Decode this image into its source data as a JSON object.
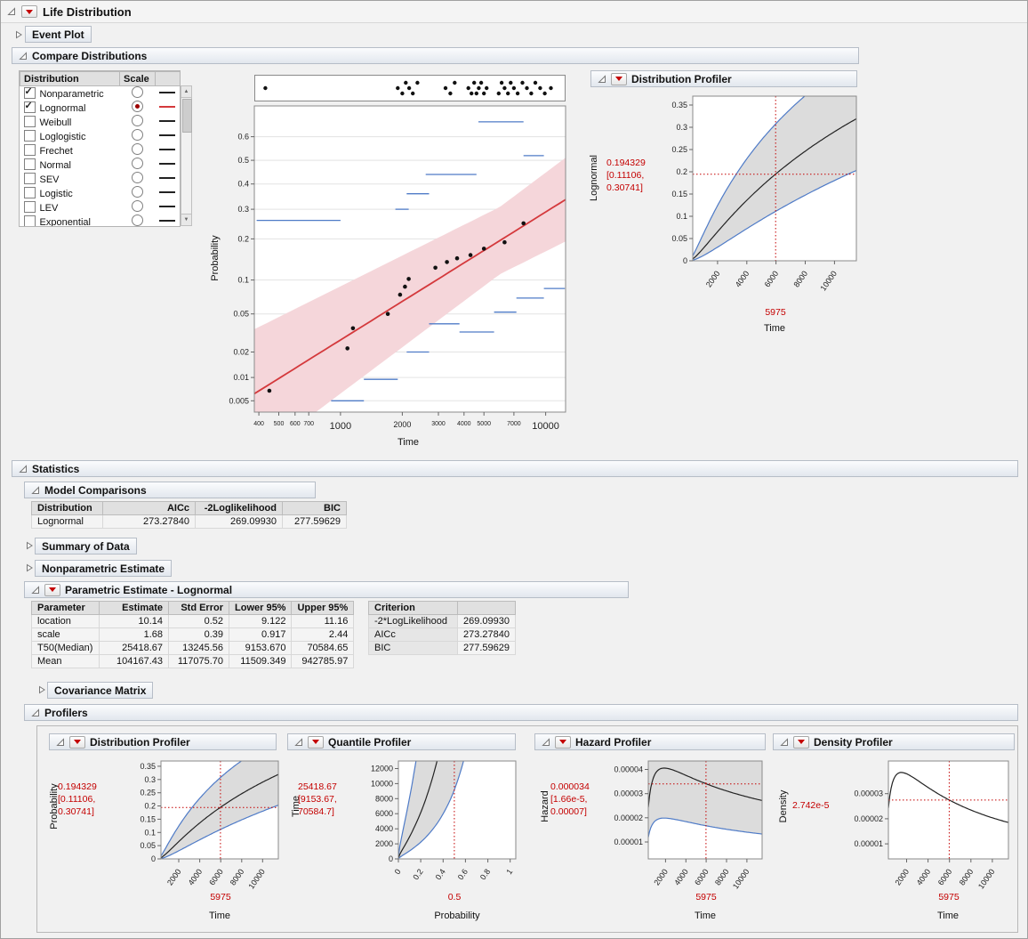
{
  "app": {
    "title": "Life Distribution"
  },
  "event_plot": {
    "title": "Event Plot"
  },
  "compare": {
    "title": "Compare Distributions",
    "table": {
      "headers": [
        "Distribution",
        "Scale",
        ""
      ],
      "rows": [
        {
          "label": "Nonparametric",
          "checked": true,
          "scale_selected": false,
          "line_color": "#222222"
        },
        {
          "label": "Lognormal",
          "checked": true,
          "scale_selected": true,
          "line_color": "#d4393c"
        },
        {
          "label": "Weibull",
          "checked": false,
          "scale_selected": false,
          "line_color": "#222222"
        },
        {
          "label": "Loglogistic",
          "checked": false,
          "scale_selected": false,
          "line_color": "#222222"
        },
        {
          "label": "Frechet",
          "checked": false,
          "scale_selected": false,
          "line_color": "#222222"
        },
        {
          "label": "Normal",
          "checked": false,
          "scale_selected": false,
          "line_color": "#222222"
        },
        {
          "label": "SEV",
          "checked": false,
          "scale_selected": false,
          "line_color": "#222222"
        },
        {
          "label": "Logistic",
          "checked": false,
          "scale_selected": false,
          "line_color": "#222222"
        },
        {
          "label": "LEV",
          "checked": false,
          "scale_selected": false,
          "line_color": "#222222"
        },
        {
          "label": "Exponential",
          "checked": false,
          "scale_selected": false,
          "line_color": "#222222"
        }
      ]
    },
    "plot": {
      "ylabel": "Probability",
      "xlabel": "Time"
    }
  },
  "profiler_top": {
    "title": "Distribution Profiler",
    "ylabel": "Lognormal",
    "xlabel": "Time",
    "value": "0.194329",
    "ci1": "[0.11106,",
    "ci2": "0.30741]",
    "x_value": "5975"
  },
  "statistics": {
    "title": "Statistics",
    "model_comparisons": {
      "title": "Model Comparisons",
      "headers": [
        "Distribution",
        "AICc",
        "-2Loglikelihood",
        "BIC"
      ],
      "rows": [
        [
          "Lognormal",
          "273.27840",
          "269.09930",
          "277.59629"
        ]
      ]
    },
    "summary_of_data": {
      "title": "Summary of Data"
    },
    "nonparametric_estimate": {
      "title": "Nonparametric Estimate"
    },
    "parametric": {
      "title": "Parametric Estimate - Lognormal",
      "headers": [
        "Parameter",
        "Estimate",
        "Std Error",
        "Lower 95%",
        "Upper 95%"
      ],
      "rows": [
        [
          "location",
          "10.14",
          "0.52",
          "9.122",
          "11.16"
        ],
        [
          "scale",
          "1.68",
          "0.39",
          "0.917",
          "2.44"
        ],
        [
          "T50(Median)",
          "25418.67",
          "13245.56",
          "9153.670",
          "70584.65"
        ],
        [
          "Mean",
          "104167.43",
          "117075.70",
          "11509.349",
          "942785.97"
        ]
      ],
      "criterion": {
        "headers": [
          "Criterion",
          ""
        ],
        "rows": [
          [
            "-2*LogLikelihood",
            "269.09930"
          ],
          [
            "AICc",
            "273.27840"
          ],
          [
            "BIC",
            "277.59629"
          ]
        ]
      }
    },
    "covariance": {
      "title": "Covariance Matrix"
    },
    "profilers_title": "Profilers"
  },
  "profilers": [
    {
      "title": "Distribution Profiler",
      "ylabel": "Probability",
      "xlabel": "Time",
      "value": "0.194329",
      "ci1": "[0.11106,",
      "ci2": "0.30741]",
      "x_value": "5975"
    },
    {
      "title": "Quantile Profiler",
      "ylabel": "Time",
      "xlabel": "Probability",
      "value": "25418.67",
      "ci1": "[9153.67,",
      "ci2": "70584.7]",
      "x_value": "0.5"
    },
    {
      "title": "Hazard Profiler",
      "ylabel": "Hazard",
      "xlabel": "Time",
      "value": "0.000034",
      "ci1": "[1.66e-5,",
      "ci2": "0.00007]",
      "x_value": "5975"
    },
    {
      "title": "Density Profiler",
      "ylabel": "Density",
      "xlabel": "Time",
      "value": "2.742e-5",
      "ci1": "",
      "ci2": "",
      "x_value": "5975"
    }
  ],
  "chart_data": [
    {
      "id": "event-strip",
      "type": "scatter",
      "xscale": "log",
      "xlim": [
        380,
        12500
      ],
      "marker_color": "#111111",
      "events": [
        [
          430,
          0
        ],
        [
          1900,
          0
        ],
        [
          2000,
          1
        ],
        [
          2080,
          -1
        ],
        [
          2160,
          0
        ],
        [
          2250,
          1
        ],
        [
          2370,
          -1
        ],
        [
          3250,
          0
        ],
        [
          3430,
          1
        ],
        [
          3600,
          -1
        ],
        [
          4200,
          0
        ],
        [
          4350,
          1
        ],
        [
          4480,
          -1
        ],
        [
          4600,
          1
        ],
        [
          4720,
          0
        ],
        [
          4850,
          -1
        ],
        [
          5000,
          1
        ],
        [
          5150,
          0
        ],
        [
          5900,
          1
        ],
        [
          6100,
          -1
        ],
        [
          6300,
          0
        ],
        [
          6550,
          1
        ],
        [
          6750,
          -1
        ],
        [
          7000,
          0
        ],
        [
          7300,
          1
        ],
        [
          7700,
          -1
        ],
        [
          8100,
          0
        ],
        [
          8500,
          1
        ],
        [
          8900,
          -1
        ],
        [
          9400,
          0
        ],
        [
          9900,
          1
        ],
        [
          10600,
          0
        ]
      ]
    },
    {
      "id": "probability-plot",
      "type": "probability-plot",
      "xlabel": "Time",
      "ylabel": "Probability",
      "xscale": "log",
      "yscale": "probit",
      "xlim": [
        380,
        12500
      ],
      "ylim": [
        0.0035,
        0.72
      ],
      "xticks": [
        {
          "v": 400,
          "label": "400",
          "fs": 7
        },
        {
          "v": 500,
          "label": "500",
          "fs": 7
        },
        {
          "v": 600,
          "label": "600",
          "fs": 7
        },
        {
          "v": 700,
          "label": "700",
          "fs": 7
        },
        {
          "v": 1000,
          "label": "1000",
          "fs": 11
        },
        {
          "v": 2000,
          "label": "2000",
          "fs": 9
        },
        {
          "v": 3000,
          "label": "3000",
          "fs": 7
        },
        {
          "v": 4000,
          "label": "4000",
          "fs": 7
        },
        {
          "v": 5000,
          "label": "5000",
          "fs": 7
        },
        {
          "v": 7000,
          "label": "7000",
          "fs": 7
        },
        {
          "v": 10000,
          "label": "10000",
          "fs": 11
        }
      ],
      "yticks": [
        {
          "v": 0.6,
          "label": "0.6"
        },
        {
          "v": 0.5,
          "label": "0.5"
        },
        {
          "v": 0.4,
          "label": "0.4"
        },
        {
          "v": 0.3,
          "label": "0.3"
        },
        {
          "v": 0.2,
          "label": "0.2"
        },
        {
          "v": 0.1,
          "label": "0.1"
        },
        {
          "v": 0.05,
          "label": "0.05"
        },
        {
          "v": 0.02,
          "label": "0.02"
        },
        {
          "v": 0.01,
          "label": "0.01"
        },
        {
          "v": 0.005,
          "label": "0.005"
        }
      ],
      "fit": {
        "distribution": "Lognormal",
        "location": 10.14,
        "scale": 1.68,
        "z_margin_base": 0.36,
        "z_margin_slope": 0.12,
        "log_center": 8.695,
        "line_color": "#d4393c",
        "band_color": "#f5d6da"
      },
      "points": [
        [
          450,
          0.0068
        ],
        [
          1080,
          0.022
        ],
        [
          1150,
          0.036
        ],
        [
          1700,
          0.05
        ],
        [
          1950,
          0.075
        ],
        [
          2060,
          0.088
        ],
        [
          2150,
          0.102
        ],
        [
          2900,
          0.125
        ],
        [
          3300,
          0.138
        ],
        [
          3700,
          0.147
        ],
        [
          4300,
          0.155
        ],
        [
          5000,
          0.172
        ],
        [
          6300,
          0.19
        ],
        [
          7800,
          0.25
        ]
      ],
      "nonparametric_ci_segments": [
        [
          390,
          1000,
          0.26
        ],
        [
          1850,
          2150,
          0.3
        ],
        [
          2100,
          2700,
          0.36
        ],
        [
          2600,
          4600,
          0.44
        ],
        [
          4700,
          7800,
          0.66
        ],
        [
          7800,
          9800,
          0.52
        ],
        [
          900,
          1300,
          0.005
        ],
        [
          1300,
          1900,
          0.0095
        ],
        [
          2100,
          2700,
          0.02
        ],
        [
          2700,
          3800,
          0.04
        ],
        [
          3800,
          5600,
          0.033
        ],
        [
          5600,
          7200,
          0.052
        ],
        [
          7200,
          9800,
          0.07
        ],
        [
          9800,
          12400,
          0.085
        ]
      ],
      "np_color": "#4f7bc7"
    },
    {
      "id": "profiler-distribution-top",
      "type": "profiler",
      "curve": "lognormal_cdf",
      "xlim": [
        300,
        11500
      ],
      "ylim": [
        0,
        0.37
      ],
      "mu": 10.14,
      "sigma": 1.68,
      "mu_upper_band": 9.54,
      "mu_lower_band": 10.746,
      "crosshair": {
        "x": 5975,
        "y": 0.194329
      },
      "xticks": [
        {
          "v": 2000,
          "label": "2000"
        },
        {
          "v": 4000,
          "label": "4000"
        },
        {
          "v": 6000,
          "label": "6000"
        },
        {
          "v": 8000,
          "label": "8000"
        },
        {
          "v": 10000,
          "label": "10000"
        }
      ],
      "yticks": [
        {
          "v": 0.35,
          "label": "0.35"
        },
        {
          "v": 0.3,
          "label": "0.3"
        },
        {
          "v": 0.25,
          "label": "0.25"
        },
        {
          "v": 0.2,
          "label": "0.2"
        },
        {
          "v": 0.15,
          "label": "0.15"
        },
        {
          "v": 0.1,
          "label": "0.1"
        },
        {
          "v": 0.05,
          "label": "0.05"
        },
        {
          "v": 0,
          "label": "0"
        }
      ]
    },
    {
      "id": "profiler-distribution",
      "type": "profiler",
      "curve": "lognormal_cdf",
      "xlim": [
        300,
        11500
      ],
      "ylim": [
        0,
        0.37
      ],
      "mu": 10.14,
      "sigma": 1.68,
      "mu_upper_band": 9.54,
      "mu_lower_band": 10.746,
      "crosshair": {
        "x": 5975,
        "y": 0.194329
      },
      "xticks": [
        {
          "v": 2000,
          "label": "2000"
        },
        {
          "v": 4000,
          "label": "4000"
        },
        {
          "v": 6000,
          "label": "6000"
        },
        {
          "v": 8000,
          "label": "8000"
        },
        {
          "v": 10000,
          "label": "10000"
        }
      ],
      "yticks": [
        {
          "v": 0.35,
          "label": "0.35"
        },
        {
          "v": 0.3,
          "label": "0.3"
        },
        {
          "v": 0.25,
          "label": "0.25"
        },
        {
          "v": 0.2,
          "label": "0.2"
        },
        {
          "v": 0.15,
          "label": "0.15"
        },
        {
          "v": 0.1,
          "label": "0.1"
        },
        {
          "v": 0.05,
          "label": "0.05"
        },
        {
          "v": 0,
          "label": "0"
        }
      ]
    },
    {
      "id": "profiler-quantile",
      "type": "profiler",
      "curve": "lognormal_quantile",
      "xlim": [
        0,
        1.05
      ],
      "ylim": [
        0,
        13000
      ],
      "mu": 10.14,
      "sigma": 1.68,
      "mu_upper_band": 11.16,
      "mu_lower_band": 9.122,
      "crosshair": {
        "x": 0.5,
        "y": 25418.67
      },
      "xticks": [
        {
          "v": 0,
          "label": "0"
        },
        {
          "v": 0.2,
          "label": "0.2"
        },
        {
          "v": 0.4,
          "label": "0.4"
        },
        {
          "v": 0.6,
          "label": "0.6"
        },
        {
          "v": 0.8,
          "label": "0.8"
        },
        {
          "v": 1,
          "label": "1"
        }
      ],
      "yticks": [
        {
          "v": 12000,
          "label": "12000"
        },
        {
          "v": 10000,
          "label": "10000"
        },
        {
          "v": 8000,
          "label": "8000"
        },
        {
          "v": 6000,
          "label": "6000"
        },
        {
          "v": 4000,
          "label": "4000"
        },
        {
          "v": 2000,
          "label": "2000"
        },
        {
          "v": 0,
          "label": "0"
        }
      ]
    },
    {
      "id": "profiler-hazard",
      "type": "profiler",
      "curve": "lognormal_hazard",
      "xlim": [
        300,
        11500
      ],
      "ylim": [
        3e-06,
        4.35e-05
      ],
      "mu": 10.14,
      "sigma": 1.68,
      "upper_mult": 2.06,
      "lower_mult": 0.49,
      "crosshair": {
        "x": 5975,
        "y": 3.4e-05
      },
      "xticks": [
        {
          "v": 2000,
          "label": "2000"
        },
        {
          "v": 4000,
          "label": "4000"
        },
        {
          "v": 6000,
          "label": "6000"
        },
        {
          "v": 8000,
          "label": "8000"
        },
        {
          "v": 10000,
          "label": "10000"
        }
      ],
      "yticks": [
        {
          "v": 4e-05,
          "label": "0.00004"
        },
        {
          "v": 3e-05,
          "label": "0.00003"
        },
        {
          "v": 2e-05,
          "label": "0.00002"
        },
        {
          "v": 1e-05,
          "label": "0.00001"
        }
      ]
    },
    {
      "id": "profiler-density",
      "type": "profiler",
      "curve": "lognormal_pdf",
      "xlim": [
        300,
        11500
      ],
      "ylim": [
        4e-06,
        4.3e-05
      ],
      "mu": 10.14,
      "sigma": 1.68,
      "crosshair": {
        "x": 5975,
        "y": 2.742e-05
      },
      "xticks": [
        {
          "v": 2000,
          "label": "2000"
        },
        {
          "v": 4000,
          "label": "4000"
        },
        {
          "v": 6000,
          "label": "6000"
        },
        {
          "v": 8000,
          "label": "8000"
        },
        {
          "v": 10000,
          "label": "10000"
        }
      ],
      "yticks": [
        {
          "v": 3e-05,
          "label": "0.00003"
        },
        {
          "v": 2e-05,
          "label": "0.00002"
        },
        {
          "v": 1e-05,
          "label": "0.00001"
        }
      ]
    }
  ]
}
